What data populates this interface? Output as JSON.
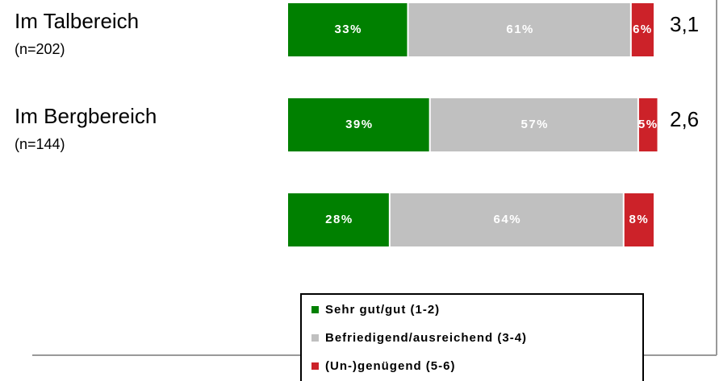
{
  "chart_data": {
    "type": "stacked-bar-horizontal",
    "categories": [
      "Im Talbereich",
      "Im Bergbereich",
      null
    ],
    "category_notes": [
      "(n=202)",
      "(n=144)",
      null
    ],
    "annotations": [
      "3,1",
      "2,6",
      null
    ],
    "xlim": [
      0,
      100
    ],
    "series": [
      {
        "name": "Sehr gut/gut (1-2)",
        "color": "#008000",
        "values": [
          33,
          39,
          28
        ],
        "value_labels": [
          "33%",
          "39%",
          "28%"
        ]
      },
      {
        "name": "Befriedigend/ausreichend (3-4)",
        "color": "#c0c0c0",
        "values": [
          61,
          57,
          64
        ],
        "value_labels": [
          "61%",
          "57%",
          "64%"
        ]
      },
      {
        "name": "(Un-)genügend (5-6)",
        "color": "#cc2229",
        "values": [
          6,
          5,
          8
        ],
        "value_labels": [
          "6%",
          "5%",
          "8%"
        ]
      }
    ]
  }
}
